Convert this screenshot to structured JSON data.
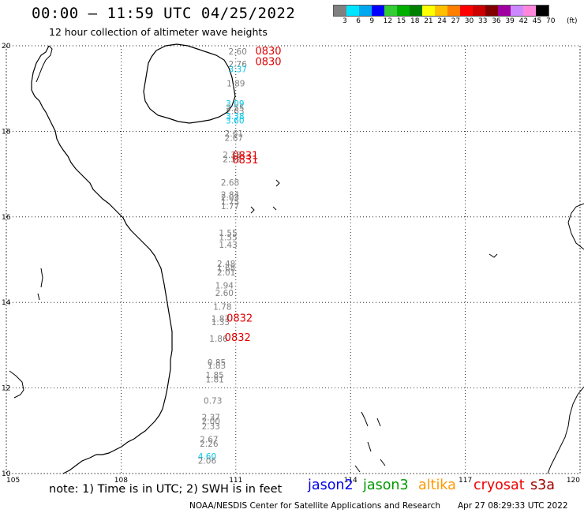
{
  "header": {
    "title": "00:00 – 11:59 UTC 04/25/2022",
    "subtitle": "12 hour collection of altimeter wave heights"
  },
  "legend": {
    "unit": "(ft)",
    "colors": [
      "#808080",
      "#00e5ff",
      "#00a8f0",
      "#0000ff",
      "#33cc33",
      "#00b000",
      "#008000",
      "#ffff00",
      "#ffc000",
      "#ff8000",
      "#ff0000",
      "#cc0000",
      "#800000",
      "#a000a0",
      "#cc88ff",
      "#ff88dd",
      "#000000"
    ],
    "ticks": [
      "3",
      "6",
      "9",
      "12",
      "15",
      "18",
      "21",
      "24",
      "27",
      "30",
      "33",
      "36",
      "39",
      "42",
      "45",
      "70"
    ]
  },
  "map": {
    "lon_ticks": [
      "105",
      "108",
      "111",
      "114",
      "117",
      "120"
    ],
    "lat_ticks": [
      "20",
      "18",
      "16",
      "14",
      "12",
      "10"
    ]
  },
  "chart_data": {
    "type": "scatter",
    "xlim": [
      105,
      120
    ],
    "ylim": [
      10,
      20
    ],
    "grid": true,
    "observations": [
      {
        "lon": 111.05,
        "lat": 19.8,
        "swh": "2.60",
        "color": "#808080"
      },
      {
        "lon": 111.05,
        "lat": 19.5,
        "swh": "2.76",
        "color": "#808080"
      },
      {
        "lon": 111.05,
        "lat": 19.38,
        "swh": "3.37",
        "color": "#00c8e8"
      },
      {
        "lon": 111.0,
        "lat": 19.05,
        "swh": "1.89",
        "color": "#808080"
      },
      {
        "lon": 110.98,
        "lat": 18.58,
        "swh": "3.09",
        "color": "#00c8e8"
      },
      {
        "lon": 110.98,
        "lat": 18.48,
        "swh": "2.55",
        "color": "#808080"
      },
      {
        "lon": 110.98,
        "lat": 18.4,
        "swh": "2.63",
        "color": "#808080"
      },
      {
        "lon": 110.98,
        "lat": 18.28,
        "swh": "3.38",
        "color": "#00c8e8"
      },
      {
        "lon": 110.98,
        "lat": 18.18,
        "swh": "3.60",
        "color": "#00c8e8"
      },
      {
        "lon": 110.95,
        "lat": 17.88,
        "swh": "2.61",
        "color": "#808080"
      },
      {
        "lon": 110.95,
        "lat": 17.78,
        "swh": "2.67",
        "color": "#808080"
      },
      {
        "lon": 110.9,
        "lat": 17.38,
        "swh": "2.33",
        "color": "#808080"
      },
      {
        "lon": 110.9,
        "lat": 17.28,
        "swh": "2.32",
        "color": "#808080"
      },
      {
        "lon": 110.85,
        "lat": 16.73,
        "swh": "2.68",
        "color": "#808080"
      },
      {
        "lon": 110.85,
        "lat": 16.45,
        "swh": "2.84",
        "color": "#808080"
      },
      {
        "lon": 110.85,
        "lat": 16.38,
        "swh": "2.03",
        "color": "#808080"
      },
      {
        "lon": 110.85,
        "lat": 16.28,
        "swh": "1.75",
        "color": "#808080"
      },
      {
        "lon": 110.85,
        "lat": 16.18,
        "swh": "1.77",
        "color": "#808080"
      },
      {
        "lon": 110.8,
        "lat": 15.55,
        "swh": "1.55",
        "color": "#808080"
      },
      {
        "lon": 110.8,
        "lat": 15.45,
        "swh": "1.55",
        "color": "#808080"
      },
      {
        "lon": 110.8,
        "lat": 15.28,
        "swh": "1.43",
        "color": "#808080"
      },
      {
        "lon": 110.75,
        "lat": 14.83,
        "swh": "2.48",
        "color": "#808080"
      },
      {
        "lon": 110.75,
        "lat": 14.73,
        "swh": "1.68",
        "color": "#808080"
      },
      {
        "lon": 110.75,
        "lat": 14.63,
        "swh": "2.01",
        "color": "#808080"
      },
      {
        "lon": 110.7,
        "lat": 14.33,
        "swh": "1.94",
        "color": "#808080"
      },
      {
        "lon": 110.7,
        "lat": 14.15,
        "swh": "2.60",
        "color": "#808080"
      },
      {
        "lon": 110.65,
        "lat": 13.83,
        "swh": "1.78",
        "color": "#808080"
      },
      {
        "lon": 110.6,
        "lat": 13.55,
        "swh": "1.83",
        "color": "#808080"
      },
      {
        "lon": 110.6,
        "lat": 13.47,
        "swh": "1.33",
        "color": "#808080"
      },
      {
        "lon": 110.55,
        "lat": 13.08,
        "swh": "1.86",
        "color": "#808080"
      },
      {
        "lon": 110.5,
        "lat": 12.53,
        "swh": "0.85",
        "color": "#808080"
      },
      {
        "lon": 110.5,
        "lat": 12.45,
        "swh": "1.83",
        "color": "#808080"
      },
      {
        "lon": 110.45,
        "lat": 12.23,
        "swh": "1.85",
        "color": "#808080"
      },
      {
        "lon": 110.45,
        "lat": 12.13,
        "swh": "1.81",
        "color": "#808080"
      },
      {
        "lon": 110.4,
        "lat": 11.63,
        "swh": "0.73",
        "color": "#808080"
      },
      {
        "lon": 110.35,
        "lat": 11.25,
        "swh": "2.37",
        "color": "#808080"
      },
      {
        "lon": 110.35,
        "lat": 11.15,
        "swh": "2.00",
        "color": "#808080"
      },
      {
        "lon": 110.35,
        "lat": 11.03,
        "swh": "2.33",
        "color": "#808080"
      },
      {
        "lon": 110.3,
        "lat": 10.73,
        "swh": "2.67",
        "color": "#808080"
      },
      {
        "lon": 110.3,
        "lat": 10.63,
        "swh": "2.26",
        "color": "#808080"
      },
      {
        "lon": 110.25,
        "lat": 10.33,
        "swh": "4.60",
        "color": "#00c8e8"
      },
      {
        "lon": 110.25,
        "lat": 10.23,
        "swh": "2.06",
        "color": "#808080"
      }
    ],
    "time_labels": [
      {
        "lon": 111.85,
        "lat": 19.8,
        "text": "0830",
        "color": "#e00000"
      },
      {
        "lon": 111.85,
        "lat": 19.55,
        "text": "0830",
        "color": "#e00000"
      },
      {
        "lon": 111.25,
        "lat": 17.35,
        "text": "0831",
        "color": "#e00000"
      },
      {
        "lon": 111.25,
        "lat": 17.25,
        "text": "0831",
        "color": "#e00000"
      },
      {
        "lon": 111.1,
        "lat": 13.55,
        "text": "0832",
        "color": "#e00000"
      },
      {
        "lon": 111.05,
        "lat": 13.1,
        "text": "0832",
        "color": "#e00000"
      }
    ]
  },
  "footer": {
    "note": "note:  1) Time is in UTC;  2) SWH is in feet",
    "satellites": [
      {
        "name": "jason2",
        "color": "#0000ee"
      },
      {
        "name": "jason3",
        "color": "#009900"
      },
      {
        "name": "altika",
        "color": "#ff9900"
      },
      {
        "name": "cryosat",
        "color": "#ee0000"
      },
      {
        "name": "s3a",
        "color": "#a00000"
      }
    ],
    "credit": "NOAA/NESDIS Center for Satellite Applications and Research",
    "timestamp": "Apr 27 08:29:33 UTC 2022"
  }
}
